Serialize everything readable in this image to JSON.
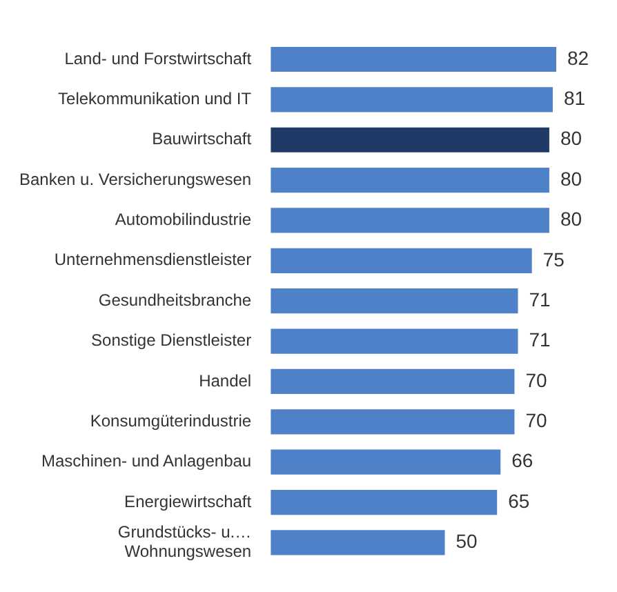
{
  "chart_data": {
    "type": "bar",
    "orientation": "horizontal",
    "data_labels": true,
    "categories": [
      "Land- und Forstwirtschaft",
      "Telekommunikation und IT",
      "Bauwirtschaft",
      "Banken u. Versicherungswesen",
      "Automobilindustrie",
      "Unternehmensdienstleister",
      "Gesundheitsbranche",
      "Sonstige Dienstleister",
      "Handel",
      "Konsumgüterindustrie",
      "Maschinen- und Anlagenbau",
      "Energiewirtschaft",
      "Grundstücks- u.…\nWohnungswesen"
    ],
    "values": [
      82,
      81,
      80,
      80,
      80,
      75,
      71,
      71,
      70,
      70,
      66,
      65,
      50
    ],
    "colors": [
      "#4f81c9",
      "#4f81c9",
      "#1f3a66",
      "#4f81c9",
      "#4f81c9",
      "#4f81c9",
      "#4f81c9",
      "#4f81c9",
      "#4f81c9",
      "#4f81c9",
      "#4f81c9",
      "#4f81c9",
      "#4f81c9"
    ]
  }
}
